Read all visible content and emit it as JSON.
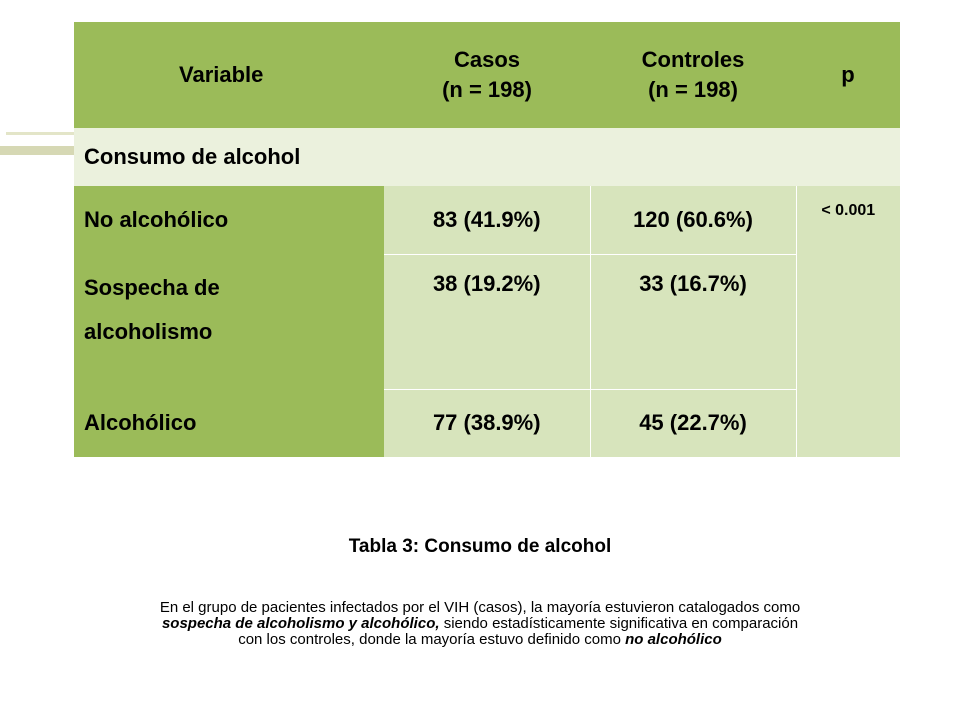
{
  "table": {
    "headers": {
      "variable": "Variable",
      "casos": "Casos",
      "casos_n": "(n = 198)",
      "controles": "Controles",
      "controles_n": "(n = 198)",
      "p": "p"
    },
    "section_title": "Consumo de alcohol",
    "rows": [
      {
        "label": "No alcohólico",
        "casos": "83 (41.9%)",
        "controles": "120 (60.6%)"
      },
      {
        "label_line1": "Sospecha de",
        "label_line2": "alcoholismo",
        "casos": "38 (19.2%)",
        "controles": "33 (16.7%)"
      },
      {
        "label": "Alcohólico",
        "casos": "77 (38.9%)",
        "controles": "45 (22.7%)"
      }
    ],
    "p_value": "< 0.001"
  },
  "caption": "Tabla 3: Consumo de alcohol",
  "paragraph": {
    "part1": "En el grupo de pacientes infectados por el VIH (casos), la mayoría estuvieron catalogados como ",
    "em1": "sospecha de alcoholismo y alcohólico,",
    "part2": " siendo estadísticamente significativa en comparación con los controles, donde la mayoría estuvo definido como ",
    "em2": "no alcohólico"
  },
  "colors": {
    "header_green": "#9bbb59",
    "section_light": "#ebf1dd",
    "cell_light": "#d7e4bc"
  }
}
